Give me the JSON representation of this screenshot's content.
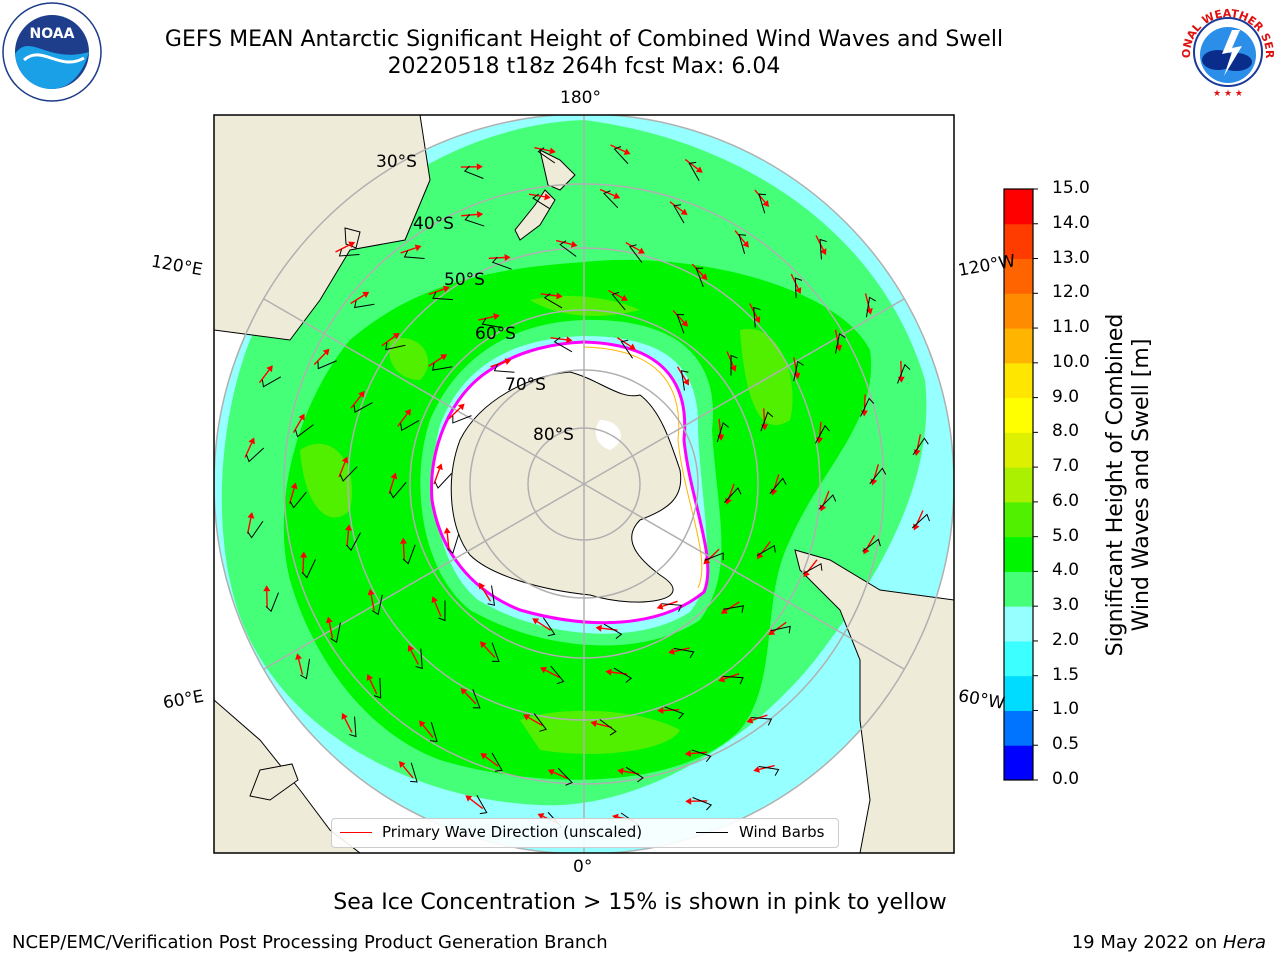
{
  "title": {
    "line1": "GEFS MEAN Antarctic Significant Height of Combined Wind Waves and Swell",
    "line2": "20220518 t18z 264h fcst   Max: 6.04"
  },
  "logos": {
    "left": "noaa-logo",
    "left_text": "NOAA",
    "right": "nws-logo",
    "right_text": "NATIONAL WEATHER SERVICE"
  },
  "map": {
    "longitude_labels": {
      "top": "180°",
      "bottom": "0°",
      "left_upper": "120°E",
      "left_lower": "60°E",
      "right_upper": "120°W",
      "right_lower": "60°W"
    },
    "latitude_labels": [
      "30°S",
      "40°S",
      "50°S",
      "60°S",
      "70°S",
      "80°S"
    ],
    "projection": "south-polar-stereographic",
    "colors": {
      "land": "#efebd9",
      "sea_ice": "#ffffff",
      "ice_edge": "#ff00ff",
      "wave_arrow": "#ff0000",
      "wind_barb": "#000000",
      "gridline": "#b0b0b0"
    }
  },
  "colorbar": {
    "label_line1": "Significant Height of Combined",
    "label_line2": "Wind Waves and Swell [m]",
    "ticks": [
      "0.0",
      "0.5",
      "1.0",
      "1.5",
      "2.0",
      "3.0",
      "4.0",
      "5.0",
      "6.0",
      "7.0",
      "8.0",
      "9.0",
      "10.0",
      "11.0",
      "12.0",
      "13.0",
      "14.0",
      "15.0"
    ],
    "colors": [
      "#0000ff",
      "#0073ff",
      "#00dcff",
      "#3cffff",
      "#96ffff",
      "#46ff78",
      "#00f500",
      "#50f000",
      "#aaf000",
      "#dcf000",
      "#ffff00",
      "#ffe600",
      "#ffb400",
      "#ff8c00",
      "#ff6400",
      "#ff3c00",
      "#ff0000"
    ]
  },
  "legend": {
    "item1": "Primary Wave Direction (unscaled)",
    "item2": "Wind Barbs"
  },
  "caption": "Sea Ice Concentration > 15% is shown in pink to yellow",
  "footer": {
    "left": "NCEP/EMC/Verification Post Processing Product Generation Branch",
    "right_date": "19 May 2022 on ",
    "right_machine": "Hera"
  }
}
